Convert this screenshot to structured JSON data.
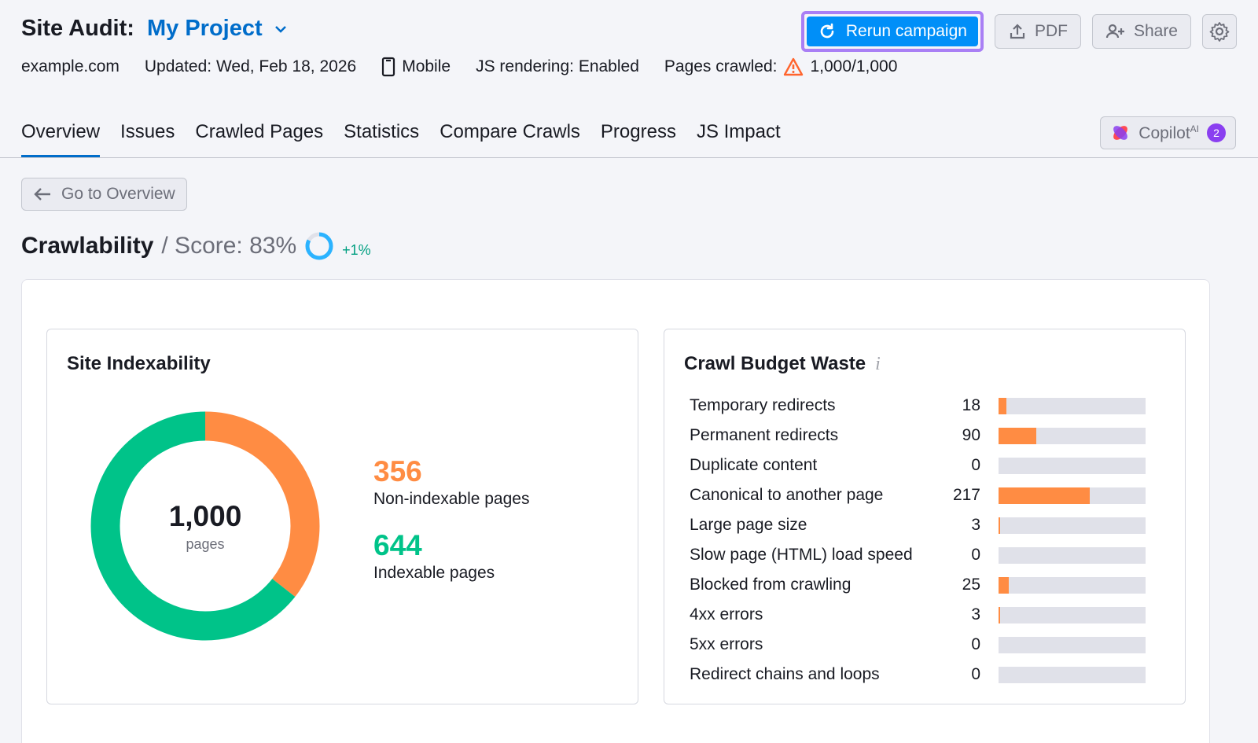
{
  "header": {
    "title_prefix": "Site Audit:",
    "project_name": "My Project",
    "rerun_label": "Rerun campaign",
    "pdf_label": "PDF",
    "share_label": "Share"
  },
  "meta": {
    "domain": "example.com",
    "updated": "Updated: Wed, Feb 18, 2026",
    "device": "Mobile",
    "js_rendering": "JS rendering: Enabled",
    "pages_crawled_label": "Pages crawled:",
    "pages_crawled_value": "1,000/1,000"
  },
  "tabs": [
    {
      "label": "Overview",
      "active": true
    },
    {
      "label": "Issues"
    },
    {
      "label": "Crawled Pages"
    },
    {
      "label": "Statistics"
    },
    {
      "label": "Compare Crawls"
    },
    {
      "label": "Progress"
    },
    {
      "label": "JS Impact"
    }
  ],
  "copilot": {
    "label": "Copilot",
    "sup": "AI",
    "badge": "2"
  },
  "back_label": "Go to Overview",
  "section": {
    "title": "Crawlability",
    "score_label": "/ Score: 83%",
    "score_value": 0.83,
    "delta": "+1%"
  },
  "indexability": {
    "title": "Site Indexability",
    "total": "1,000",
    "total_unit": "pages",
    "non_indexable": {
      "value": "356",
      "label": "Non-indexable pages",
      "count": 356,
      "color": "#ff8c43"
    },
    "indexable": {
      "value": "644",
      "label": "Indexable pages",
      "count": 644,
      "color": "#00c389"
    }
  },
  "waste": {
    "title": "Crawl Budget Waste",
    "max": 350,
    "items": [
      {
        "name": "Temporary redirects",
        "value": 18
      },
      {
        "name": "Permanent redirects",
        "value": 90
      },
      {
        "name": "Duplicate content",
        "value": 0
      },
      {
        "name": "Canonical to another page",
        "value": 217
      },
      {
        "name": "Large page size",
        "value": 3
      },
      {
        "name": "Slow page (HTML) load speed",
        "value": 0
      },
      {
        "name": "Blocked from crawling",
        "value": 25
      },
      {
        "name": "4xx errors",
        "value": 3
      },
      {
        "name": "5xx errors",
        "value": 0
      },
      {
        "name": "Redirect chains and loops",
        "value": 0
      }
    ]
  },
  "colors": {
    "accent": "#006dca",
    "primary_button": "#008ff8",
    "warning": "#ff642d"
  }
}
